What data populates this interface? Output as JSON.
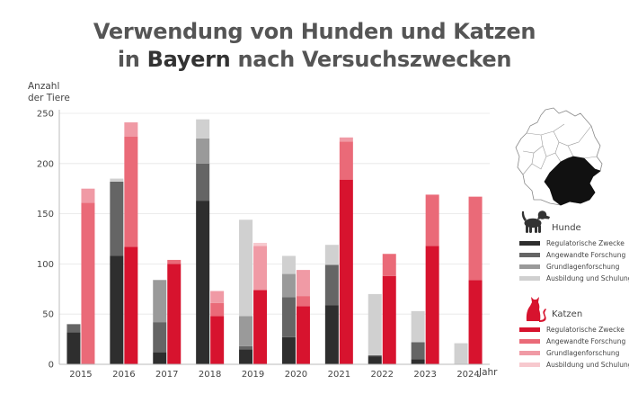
{
  "title_line1": "Verwendung von Hunden und Katzen",
  "title_line2_prefix": "in ",
  "title_line2_bold": "Bayern",
  "title_line2_suffix": " nach Versuchszwecken",
  "colors": {
    "dogs": [
      "#2e2e2e",
      "#656565",
      "#9a9a9a",
      "#d0d0d0"
    ],
    "cats": [
      "#d7132e",
      "#ea6a78",
      "#f09aa5",
      "#f7c9ce"
    ],
    "map_outline": "#8a8a8a",
    "map_highlight": "#111111"
  },
  "chart_data": {
    "type": "bar",
    "stacked": true,
    "grouped": true,
    "title": "Verwendung von Hunden und Katzen in Bayern nach Versuchszwecken",
    "ylabel_line1": "Anzahl",
    "ylabel_line2": "der Tiere",
    "xlabel": "Jahr",
    "ylim": [
      0,
      250
    ],
    "yticks": [
      0,
      50,
      100,
      150,
      200,
      250
    ],
    "grid": true,
    "categories": [
      "2015",
      "2016",
      "2017",
      "2018",
      "2019",
      "2020",
      "2021",
      "2022",
      "2023",
      "2024"
    ],
    "groups": [
      {
        "name": "Hunde",
        "series": [
          {
            "name": "Regulatorische Zwecke",
            "values": [
              32,
              108,
              12,
              163,
              15,
              27,
              59,
              8,
              5,
              0
            ]
          },
          {
            "name": "Angewandte Forschung",
            "values": [
              8,
              74,
              30,
              37,
              3,
              40,
              40,
              1,
              17,
              0
            ]
          },
          {
            "name": "Grundlagenforschung",
            "values": [
              0,
              0,
              42,
              25,
              30,
              23,
              0,
              0,
              0,
              0
            ]
          },
          {
            "name": "Ausbildung und Schulung",
            "values": [
              0,
              3,
              0,
              19,
              96,
              18,
              20,
              61,
              31,
              21
            ]
          }
        ]
      },
      {
        "name": "Katzen",
        "series": [
          {
            "name": "Regulatorische Zwecke",
            "values": [
              0,
              117,
              100,
              48,
              74,
              58,
              184,
              88,
              118,
              84
            ]
          },
          {
            "name": "Angewandte Forschung",
            "values": [
              161,
              110,
              4,
              13,
              0,
              10,
              38,
              22,
              51,
              83
            ]
          },
          {
            "name": "Grundlagenforschung",
            "values": [
              14,
              14,
              0,
              12,
              44,
              26,
              4,
              0,
              0,
              0
            ]
          },
          {
            "name": "Ausbildung und Schulung",
            "values": [
              0,
              0,
              0,
              0,
              3,
              0,
              0,
              0,
              0,
              0
            ]
          }
        ]
      }
    ]
  },
  "legend": {
    "dogs_title": "Hunde",
    "cats_title": "Katzen",
    "items": [
      "Regulatorische Zwecke",
      "Angewandte Forschung",
      "Grundlagenforschung",
      "Ausbildung und Schulung"
    ]
  }
}
